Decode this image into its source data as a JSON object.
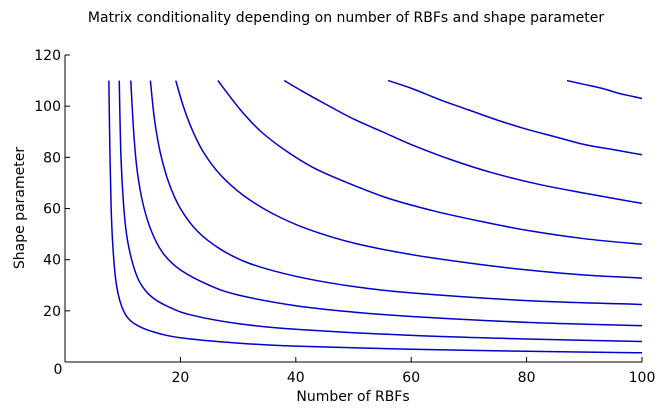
{
  "chart_data": {
    "type": "line",
    "title": "Matrix conditionality depending on number of RBFs and shape parameter",
    "xlabel": "Number of RBFs",
    "ylabel": "Shape parameter",
    "xlim": [
      0,
      100
    ],
    "ylim": [
      0,
      120
    ],
    "x_ticks": [
      {
        "value": 0,
        "label": "0"
      },
      {
        "value": 20,
        "label": "20"
      },
      {
        "value": 40,
        "label": "40"
      },
      {
        "value": 60,
        "label": "60"
      },
      {
        "value": 80,
        "label": "80"
      },
      {
        "value": 100,
        "label": "100"
      }
    ],
    "y_ticks": [
      {
        "value": 20,
        "label": "20"
      },
      {
        "value": 40,
        "label": "40"
      },
      {
        "value": 60,
        "label": "60"
      },
      {
        "value": 80,
        "label": "80"
      },
      {
        "value": 100,
        "label": "100"
      },
      {
        "value": 120,
        "label": "120"
      }
    ],
    "grid": false,
    "line_color": "#0000cc",
    "series": [
      {
        "points": [
          [
            7.6,
            110
          ],
          [
            7.8,
            80
          ],
          [
            8.0,
            60
          ],
          [
            8.3,
            45
          ],
          [
            8.8,
            32
          ],
          [
            9.5,
            24
          ],
          [
            10.5,
            18.5
          ],
          [
            12,
            15
          ],
          [
            15,
            12
          ],
          [
            20,
            9.5
          ],
          [
            30,
            7.4
          ],
          [
            40,
            6.2
          ],
          [
            60,
            5.0
          ],
          [
            80,
            4.2
          ],
          [
            100,
            3.6
          ]
        ]
      },
      {
        "points": [
          [
            9.4,
            110
          ],
          [
            9.7,
            80
          ],
          [
            10.2,
            60
          ],
          [
            10.8,
            48
          ],
          [
            11.8,
            38
          ],
          [
            13,
            31
          ],
          [
            15,
            25.5
          ],
          [
            18,
            21.5
          ],
          [
            22,
            18.3
          ],
          [
            30,
            15
          ],
          [
            40,
            12.8
          ],
          [
            60,
            10.4
          ],
          [
            80,
            9.0
          ],
          [
            100,
            8.0
          ]
        ]
      },
      {
        "points": [
          [
            11.4,
            110
          ],
          [
            11.9,
            90
          ],
          [
            12.5,
            75
          ],
          [
            13.5,
            62
          ],
          [
            15,
            51
          ],
          [
            17,
            42.5
          ],
          [
            20,
            36
          ],
          [
            25,
            30
          ],
          [
            30,
            26.2
          ],
          [
            40,
            22
          ],
          [
            50,
            19.5
          ],
          [
            60,
            17.8
          ],
          [
            80,
            15.5
          ],
          [
            100,
            14.2
          ]
        ]
      },
      {
        "points": [
          [
            14.8,
            110
          ],
          [
            15.5,
            95
          ],
          [
            16.5,
            82
          ],
          [
            18,
            70
          ],
          [
            20,
            60
          ],
          [
            23,
            51
          ],
          [
            27,
            44
          ],
          [
            32,
            38.5
          ],
          [
            40,
            33.5
          ],
          [
            50,
            29.5
          ],
          [
            60,
            27
          ],
          [
            80,
            24
          ],
          [
            100,
            22.5
          ]
        ]
      },
      {
        "points": [
          [
            19.2,
            110
          ],
          [
            20.5,
            100
          ],
          [
            22,
            91
          ],
          [
            24,
            82
          ],
          [
            27,
            73
          ],
          [
            31,
            65
          ],
          [
            36,
            58
          ],
          [
            42,
            52
          ],
          [
            50,
            46.5
          ],
          [
            60,
            42
          ],
          [
            70,
            38.7
          ],
          [
            80,
            36
          ],
          [
            90,
            34
          ],
          [
            100,
            32.8
          ]
        ]
      },
      {
        "points": [
          [
            26.5,
            110
          ],
          [
            28.5,
            104
          ],
          [
            31,
            97
          ],
          [
            34,
            90
          ],
          [
            38,
            83
          ],
          [
            43,
            76
          ],
          [
            49,
            70
          ],
          [
            56,
            64
          ],
          [
            64,
            59
          ],
          [
            72,
            55
          ],
          [
            80,
            51.5
          ],
          [
            90,
            48.2
          ],
          [
            100,
            46
          ]
        ]
      },
      {
        "points": [
          [
            38,
            110
          ],
          [
            41,
            106
          ],
          [
            45,
            101
          ],
          [
            50,
            95
          ],
          [
            55,
            90
          ],
          [
            60,
            85
          ],
          [
            67,
            79
          ],
          [
            74,
            74
          ],
          [
            82,
            69.5
          ],
          [
            90,
            66
          ],
          [
            100,
            62
          ]
        ]
      },
      {
        "points": [
          [
            56,
            110
          ],
          [
            60,
            107
          ],
          [
            65,
            102.5
          ],
          [
            70,
            98.5
          ],
          [
            75,
            94.5
          ],
          [
            80,
            91
          ],
          [
            85,
            88
          ],
          [
            90,
            85
          ],
          [
            95,
            83
          ],
          [
            100,
            81
          ]
        ]
      },
      {
        "points": [
          [
            87,
            110
          ],
          [
            90,
            108.5
          ],
          [
            93,
            107
          ],
          [
            96,
            105
          ],
          [
            98,
            104
          ],
          [
            100,
            103
          ]
        ]
      }
    ]
  }
}
